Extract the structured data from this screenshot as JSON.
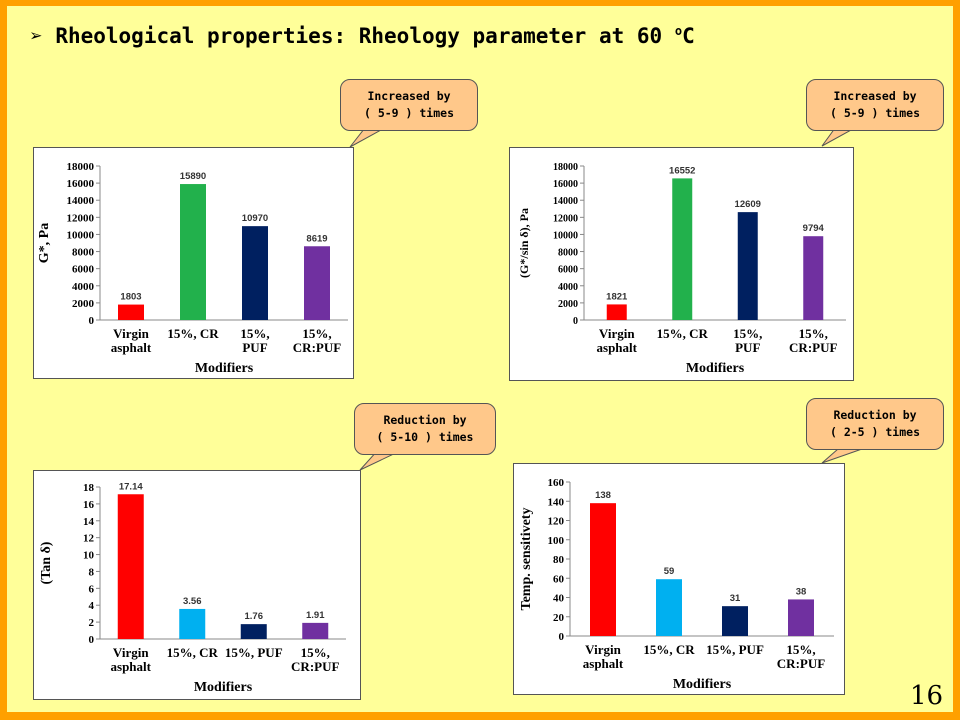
{
  "slide": {
    "title_bullet": "➢",
    "title_text": "Rheological properties: Rheology parameter at 60 ",
    "title_sup": "o",
    "title_end": "C",
    "page_number": "16",
    "colors": {
      "background": "#ffff99",
      "border": "#ffa000",
      "callout": "#ffc88a"
    }
  },
  "callouts": [
    {
      "line1": "Increased by",
      "line2": "( 5-9 ) times"
    },
    {
      "line1": "Increased by",
      "line2": "( 5-9 ) times"
    },
    {
      "line1": "Reduction by",
      "line2": "( 5-10 ) times"
    },
    {
      "line1": "Reduction by",
      "line2": "( 2-5 ) times"
    }
  ],
  "chart_data": [
    {
      "type": "bar",
      "categories": [
        [
          "Virgin",
          "asphalt"
        ],
        [
          "15%, CR"
        ],
        [
          "15%,",
          "PUF"
        ],
        [
          "15%,",
          "CR:PUF"
        ]
      ],
      "values": [
        1803,
        15890,
        10970,
        8619
      ],
      "data_labels": [
        "1803",
        "15890",
        "10970",
        "8619"
      ],
      "colors": [
        "#ff0000",
        "#22b14c",
        "#002060",
        "#7030a0"
      ],
      "ylabel": "G*, Pa",
      "xlabel": "Modifiers",
      "ylim": [
        0,
        18000
      ],
      "yticks": [
        0,
        2000,
        4000,
        6000,
        8000,
        10000,
        12000,
        14000,
        16000,
        18000
      ]
    },
    {
      "type": "bar",
      "categories": [
        [
          "Virgin",
          "asphalt"
        ],
        [
          "15%, CR"
        ],
        [
          "15%,",
          "PUF"
        ],
        [
          "15%,",
          "CR:PUF"
        ]
      ],
      "values": [
        1821,
        16552,
        12609,
        9794
      ],
      "data_labels": [
        "1821",
        "16552",
        "12609",
        "9794"
      ],
      "colors": [
        "#ff0000",
        "#22b14c",
        "#002060",
        "#7030a0"
      ],
      "ylabel": "(G*/sin δ),  Pa",
      "xlabel": "Modifiers",
      "ylim": [
        0,
        18000
      ],
      "yticks": [
        0,
        2000,
        4000,
        6000,
        8000,
        10000,
        12000,
        14000,
        16000,
        18000
      ]
    },
    {
      "type": "bar",
      "categories": [
        [
          "Virgin",
          "asphalt"
        ],
        [
          "15%, CR"
        ],
        [
          "15%, PUF"
        ],
        [
          "15%,",
          "CR:PUF"
        ]
      ],
      "values": [
        17.14,
        3.56,
        1.76,
        1.91
      ],
      "data_labels": [
        "17.14",
        "3.56",
        "1.76",
        "1.91"
      ],
      "colors": [
        "#ff0000",
        "#00b0f0",
        "#002060",
        "#7030a0"
      ],
      "ylabel": "(Tan δ)",
      "xlabel": "Modifiers",
      "ylim": [
        0,
        18
      ],
      "yticks": [
        0,
        2,
        4,
        6,
        8,
        10,
        12,
        14,
        16,
        18
      ]
    },
    {
      "type": "bar",
      "categories": [
        [
          "Virgin",
          "asphalt"
        ],
        [
          "15%, CR"
        ],
        [
          "15%, PUF"
        ],
        [
          "15%,",
          "CR:PUF"
        ]
      ],
      "values": [
        138,
        59,
        31,
        38
      ],
      "data_labels": [
        "138",
        "59",
        "31",
        "38"
      ],
      "colors": [
        "#ff0000",
        "#00b0f0",
        "#002060",
        "#7030a0"
      ],
      "ylabel": "Temp. sensitivety",
      "xlabel": "Modifiers",
      "ylim": [
        0,
        160
      ],
      "yticks": [
        0,
        20,
        40,
        60,
        80,
        100,
        120,
        140,
        160
      ]
    }
  ]
}
